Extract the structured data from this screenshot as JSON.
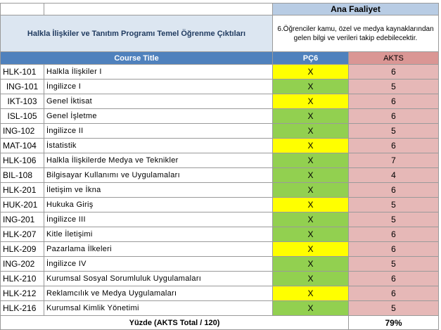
{
  "header": {
    "ana_faaliyet": "Ana Faaliyet",
    "program_title": "Halkla İlişkiler ve Tanıtım Programı Temel Öğrenme Çıktıları",
    "outcome_description": "6.Öğrenciler kamu, özel ve medya kaynaklarından gelen bilgi ve verileri takip edebilecektir.",
    "course_title_label": "Course Title",
    "pc_label": "PÇ6",
    "akts_label": "AKTS"
  },
  "courses": [
    {
      "code": "HLK-101",
      "title": "Halkla İlişkiler I",
      "mark": "X",
      "akts": "6",
      "color": "yellow",
      "center": false
    },
    {
      "code": "ING-101",
      "title": "İngilizce I",
      "mark": "X",
      "akts": "5",
      "color": "green",
      "center": true
    },
    {
      "code": "IKT-103",
      "title": "Genel İktisat",
      "mark": "X",
      "akts": "6",
      "color": "yellow",
      "center": true
    },
    {
      "code": "ISL-105",
      "title": "Genel İşletme",
      "mark": "X",
      "akts": "6",
      "color": "green",
      "center": true
    },
    {
      "code": "ING-102",
      "title": "İngilizce II",
      "mark": "X",
      "akts": "5",
      "color": "green",
      "center": false
    },
    {
      "code": "MAT-104",
      "title": "İstatistik",
      "mark": "X",
      "akts": "6",
      "color": "yellow",
      "center": false
    },
    {
      "code": "HLK-106",
      "title": "Halkla İlişkilerde Medya ve Teknikler",
      "mark": "X",
      "akts": "7",
      "color": "green",
      "center": false
    },
    {
      "code": "BIL-108",
      "title": "Bilgisayar Kullanımı ve Uygulamaları",
      "mark": "X",
      "akts": "4",
      "color": "green",
      "center": false
    },
    {
      "code": "HLK-201",
      "title": "İletişim ve İkna",
      "mark": "X",
      "akts": "6",
      "color": "green",
      "center": false
    },
    {
      "code": "HUK-201",
      "title": "Hukuka Giriş",
      "mark": "X",
      "akts": "5",
      "color": "yellow",
      "center": false
    },
    {
      "code": "ING-201",
      "title": "İngilizce III",
      "mark": "X",
      "akts": "5",
      "color": "green",
      "center": false
    },
    {
      "code": "HLK-207",
      "title": "Kitle İletişimi",
      "mark": "X",
      "akts": "6",
      "color": "green",
      "center": false
    },
    {
      "code": "HLK-209",
      "title": "Pazarlama İlkeleri",
      "mark": "X",
      "akts": "6",
      "color": "yellow",
      "center": false
    },
    {
      "code": "ING-202",
      "title": "İngilizce IV",
      "mark": "X",
      "akts": "5",
      "color": "green",
      "center": false
    },
    {
      "code": "HLK-210",
      "title": "Kurumsal Sosyal Sorumluluk Uygulamaları",
      "mark": "X",
      "akts": "6",
      "color": "green",
      "center": false
    },
    {
      "code": "HLK-212",
      "title": "Reklamcılık ve Medya Uygulamaları",
      "mark": "X",
      "akts": "6",
      "color": "yellow",
      "center": false
    },
    {
      "code": "HLK-216",
      "title": "Kurumsal Kimlik Yönetimi",
      "mark": "X",
      "akts": "5",
      "color": "green",
      "center": false
    }
  ],
  "footer": {
    "label": "Yüzde (AKTS Total / 120)",
    "value": "79%"
  },
  "colors": {
    "yellow": "#ffff00",
    "green": "#92d050",
    "header_blue": "#4f81bd",
    "akts_pink": "#e6b8b7"
  }
}
